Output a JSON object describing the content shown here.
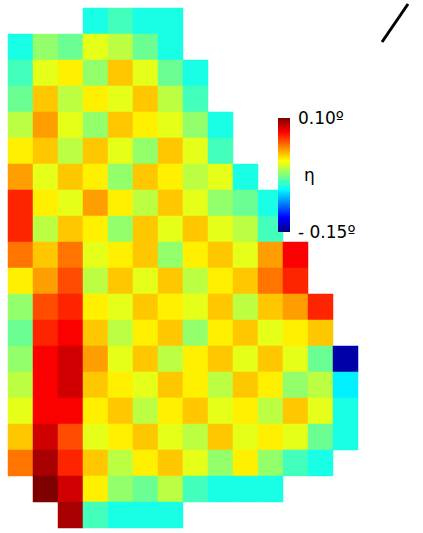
{
  "chart_data": {
    "type": "heatmap",
    "tick_labels": false,
    "cells": [
      [
        null,
        null,
        null,
        -0.05,
        -0.04,
        -0.05,
        -0.05,
        null,
        null,
        null,
        null,
        null,
        null,
        null
      ],
      [
        -0.05,
        -0.02,
        -0.03,
        0.0,
        -0.01,
        -0.03,
        -0.05,
        null,
        null,
        null,
        null,
        null,
        null,
        null
      ],
      [
        -0.04,
        0.0,
        0.01,
        -0.02,
        0.02,
        0.0,
        -0.03,
        -0.05,
        null,
        null,
        null,
        null,
        null,
        null
      ],
      [
        -0.03,
        0.02,
        -0.01,
        0.01,
        0.0,
        0.02,
        -0.01,
        -0.04,
        null,
        null,
        null,
        null,
        null,
        null
      ],
      [
        -0.01,
        0.03,
        0.0,
        -0.02,
        0.02,
        0.01,
        0.0,
        -0.02,
        -0.05,
        null,
        null,
        null,
        null,
        null
      ],
      [
        0.01,
        0.02,
        -0.01,
        0.02,
        0.0,
        -0.02,
        0.02,
        0.0,
        -0.04,
        null,
        null,
        null,
        null,
        null
      ],
      [
        0.03,
        0.0,
        0.02,
        0.01,
        -0.02,
        0.02,
        0.01,
        -0.01,
        0.0,
        -0.05,
        null,
        null,
        null,
        null
      ],
      [
        0.06,
        0.01,
        0.0,
        0.03,
        0.01,
        -0.01,
        0.02,
        0.0,
        -0.02,
        -0.03,
        -0.05,
        null,
        null,
        null
      ],
      [
        0.06,
        -0.01,
        0.02,
        0.01,
        -0.02,
        0.02,
        0.0,
        0.02,
        0.0,
        -0.01,
        -0.04,
        null,
        null,
        null
      ],
      [
        0.04,
        0.02,
        0.04,
        0.0,
        0.01,
        0.02,
        -0.02,
        0.01,
        0.02,
        0.0,
        0.03,
        0.07,
        null,
        null
      ],
      [
        0.01,
        0.03,
        0.05,
        -0.01,
        0.02,
        0.0,
        0.02,
        -0.01,
        0.01,
        0.02,
        0.04,
        0.06,
        null,
        null
      ],
      [
        -0.02,
        0.05,
        0.06,
        0.01,
        0.0,
        0.02,
        0.01,
        0.0,
        0.02,
        -0.01,
        0.02,
        0.03,
        0.06,
        null
      ],
      [
        -0.03,
        0.06,
        0.07,
        0.02,
        -0.01,
        0.01,
        0.02,
        -0.02,
        0.01,
        0.02,
        0.0,
        0.01,
        0.02,
        null
      ],
      [
        -0.02,
        0.07,
        0.08,
        0.03,
        0.0,
        0.02,
        -0.01,
        0.01,
        0.02,
        0.0,
        0.02,
        0.0,
        -0.03,
        -0.14
      ],
      [
        -0.01,
        0.07,
        0.08,
        0.02,
        0.01,
        0.0,
        0.02,
        0.01,
        -0.01,
        0.02,
        0.01,
        -0.02,
        -0.01,
        -0.06
      ],
      [
        0.0,
        0.07,
        0.07,
        0.01,
        0.02,
        -0.01,
        0.01,
        0.02,
        0.0,
        0.01,
        -0.01,
        0.02,
        0.0,
        -0.05
      ],
      [
        0.02,
        0.08,
        0.05,
        0.0,
        0.01,
        0.02,
        0.0,
        -0.01,
        0.02,
        0.0,
        0.01,
        0.0,
        -0.03,
        -0.05
      ],
      [
        0.04,
        0.09,
        0.06,
        0.02,
        -0.01,
        0.01,
        0.02,
        0.0,
        -0.02,
        0.01,
        -0.02,
        -0.04,
        -0.05,
        null
      ],
      [
        null,
        0.1,
        0.08,
        0.01,
        -0.02,
        -0.03,
        -0.01,
        -0.04,
        -0.05,
        -0.05,
        -0.05,
        null,
        null,
        null
      ],
      [
        null,
        null,
        0.09,
        -0.04,
        -0.05,
        -0.05,
        -0.05,
        null,
        null,
        null,
        null,
        null,
        null,
        null
      ]
    ],
    "colorbar": {
      "title": "η",
      "range": [
        -0.15,
        0.1
      ],
      "ticks": [
        {
          "value": 0.1,
          "label": "0.10º"
        },
        {
          "value": -0.15,
          "label": "- 0.15º"
        }
      ]
    }
  }
}
